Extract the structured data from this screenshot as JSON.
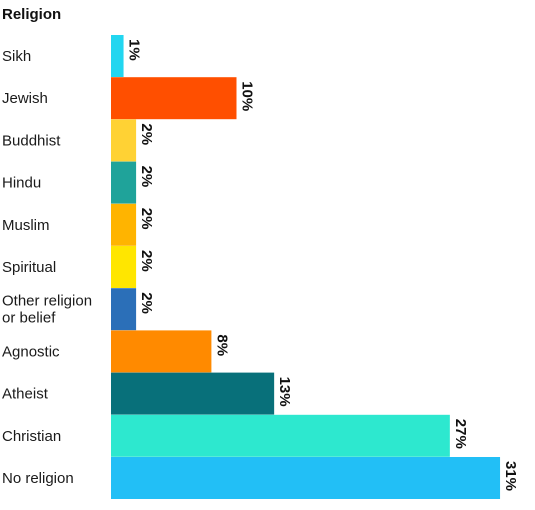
{
  "chart_data": {
    "type": "bar",
    "orientation": "horizontal",
    "title": "Religion",
    "xlabel": "",
    "ylabel": "",
    "xlim": [
      0,
      31
    ],
    "grid": false,
    "legend": "none",
    "categories": [
      "Sikh",
      "Jewish",
      "Buddhist",
      "Hindu",
      "Muslim",
      "Spiritual",
      "Other religion or belief",
      "Agnostic",
      "Atheist",
      "Christian",
      "No religion"
    ],
    "category_lines": [
      [
        "Sikh"
      ],
      [
        "Jewish"
      ],
      [
        "Buddhist"
      ],
      [
        "Hindu"
      ],
      [
        "Muslim"
      ],
      [
        "Spiritual"
      ],
      [
        "Other religion",
        "or belief"
      ],
      [
        "Agnostic"
      ],
      [
        "Atheist"
      ],
      [
        "Christian"
      ],
      [
        "No religion"
      ]
    ],
    "values": [
      1,
      10,
      2,
      2,
      2,
      2,
      2,
      8,
      13,
      27,
      31
    ],
    "value_labels": [
      "1%",
      "10%",
      "2%",
      "2%",
      "2%",
      "2%",
      "2%",
      "8%",
      "13%",
      "27%",
      "31%"
    ],
    "colors": [
      "#22d6f0",
      "#ff4f00",
      "#ffd234",
      "#1fa39a",
      "#ffb400",
      "#ffe600",
      "#2b6fb8",
      "#ff8a00",
      "#08707a",
      "#2de8cf",
      "#22bff6"
    ]
  }
}
